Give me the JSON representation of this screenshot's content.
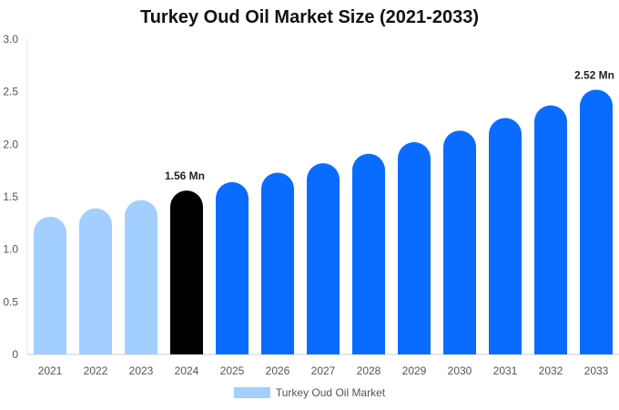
{
  "chart_data": {
    "type": "bar",
    "title": "Turkey Oud Oil Market Size (2021-2033)",
    "categories": [
      "2021",
      "2022",
      "2023",
      "2024",
      "2025",
      "2026",
      "2027",
      "2028",
      "2029",
      "2030",
      "2031",
      "2032",
      "2033"
    ],
    "values": [
      1.31,
      1.39,
      1.47,
      1.56,
      1.64,
      1.73,
      1.82,
      1.91,
      2.02,
      2.13,
      2.25,
      2.37,
      2.52
    ],
    "series": [
      {
        "name": "Turkey Oud Oil Market",
        "values": [
          1.31,
          1.39,
          1.47,
          1.56,
          1.64,
          1.73,
          1.82,
          1.91,
          2.02,
          2.13,
          2.25,
          2.37,
          2.52
        ]
      }
    ],
    "ylim": [
      0,
      3.0
    ],
    "yticks": [
      "0",
      "0.5",
      "1.0",
      "1.5",
      "2.0",
      "2.5",
      "3.0"
    ],
    "ytick_values": [
      0,
      0.5,
      1.0,
      1.5,
      2.0,
      2.5,
      3.0
    ],
    "data_labels": [
      {
        "index": 3,
        "text": "1.56 Mn"
      },
      {
        "index": 12,
        "text": "2.52 Mn"
      }
    ],
    "bar_colors": [
      "#a3cfff",
      "#a3cfff",
      "#a3cfff",
      "#000000",
      "#0a6cff",
      "#0a6cff",
      "#0a6cff",
      "#0a6cff",
      "#0a6cff",
      "#0a6cff",
      "#0a6cff",
      "#0a6cff",
      "#0a6cff"
    ],
    "legend": {
      "label": "Turkey Oud Oil Market",
      "color": "#a3cfff",
      "position": "bottom"
    },
    "grid": false
  }
}
